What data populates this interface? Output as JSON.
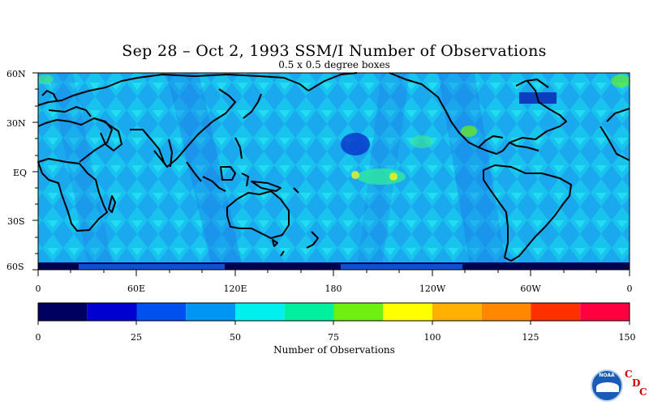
{
  "title": "Sep 28 – Oct 2, 1993 SSM/I Number of Observations",
  "subtitle": "0.5 x 0.5 degree boxes",
  "map": {
    "latitude_labels": [
      "60N",
      "30N",
      "EQ",
      "30S",
      "60S"
    ],
    "longitude_labels": [
      "0",
      "60E",
      "120E",
      "180",
      "120W",
      "60W",
      "0"
    ]
  },
  "colorbar": {
    "title": "Number of Observations",
    "tick_labels": [
      "0",
      "25",
      "50",
      "75",
      "100",
      "125",
      "150"
    ],
    "colors": [
      "#000060",
      "#0000d0",
      "#0050f0",
      "#0095f0",
      "#00f0f0",
      "#00f0a0",
      "#70f010",
      "#ffff00",
      "#ffb000",
      "#ff8800",
      "#ff3000",
      "#ff0040"
    ]
  },
  "logos": {
    "noaa": "NOAA",
    "cdc": [
      "C",
      "D",
      "C"
    ]
  },
  "chart_data": {
    "type": "heatmap",
    "title": "Sep 28 – Oct 2, 1993 SSM/I Number of Observations",
    "subtitle": "0.5 x 0.5 degree boxes",
    "x_range_lon": [
      0,
      360
    ],
    "y_range_lat": [
      -60,
      60
    ],
    "value_range": [
      0,
      150
    ],
    "colorbar_levels": [
      0,
      12.5,
      25,
      37.5,
      50,
      62.5,
      75,
      87.5,
      100,
      112.5,
      125,
      137.5,
      150
    ],
    "dominant_value_band": [
      50,
      75
    ],
    "notes": "Swath pattern of satellite observations; most boxes 40-65 observations, darker swath gaps 25-40, isolated maxima 75-100 near equator and central Pacific"
  }
}
